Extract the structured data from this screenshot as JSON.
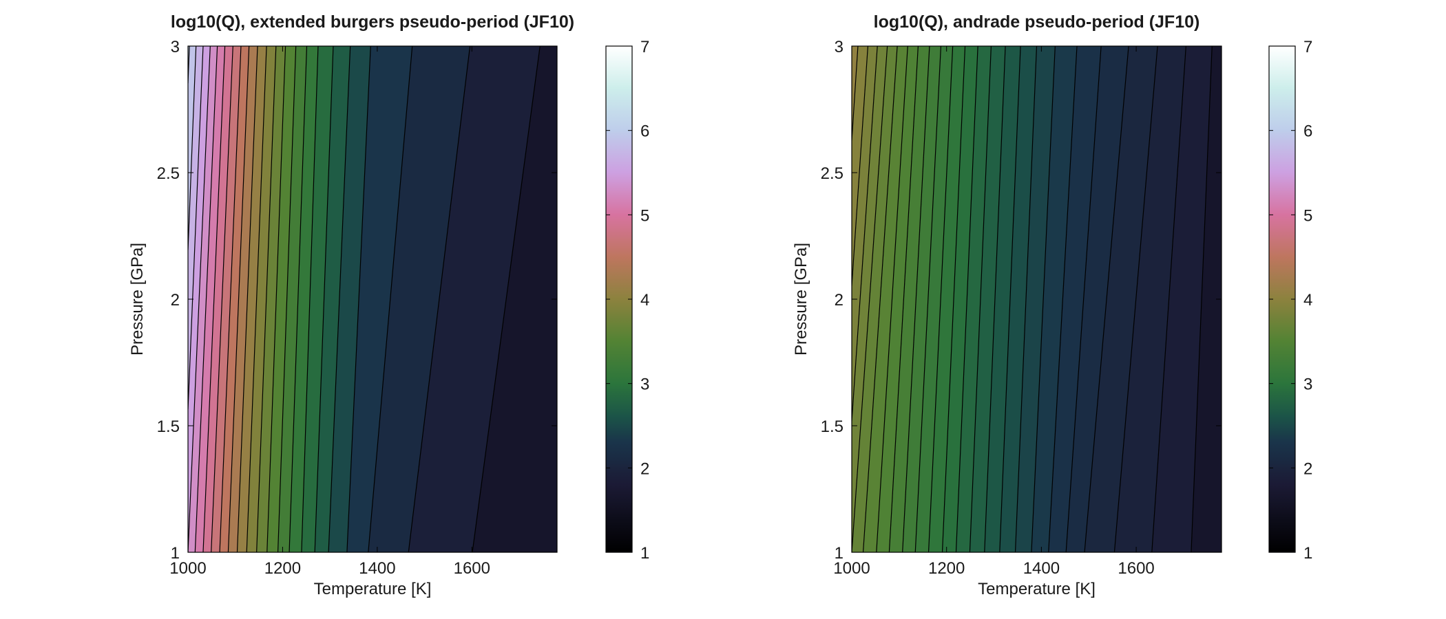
{
  "chart_data": [
    {
      "type": "contour",
      "title": "log10(Q), extended burgers pseudo-period (JF10)",
      "xlabel": "Temperature [K]",
      "ylabel": "Pressure [GPa]",
      "xlim": [
        1000,
        1780
      ],
      "ylim": [
        1,
        3
      ],
      "xticks": [
        "1000",
        "1200",
        "1400",
        "1600"
      ],
      "yticks": [
        "1",
        "1.5",
        "2",
        "2.5",
        "3"
      ],
      "colorbar": {
        "range": [
          1,
          7
        ],
        "ticks": [
          "1",
          "2",
          "3",
          "4",
          "5",
          "6",
          "7"
        ]
      },
      "contour_levels": [
        1.8,
        2.0,
        2.2,
        2.4,
        2.6,
        2.8,
        3.0,
        3.2,
        3.4,
        3.6,
        3.8,
        4.0,
        4.2,
        4.4,
        4.6,
        4.8,
        5.0,
        5.2,
        5.4,
        5.6,
        5.8,
        6.0,
        6.2,
        6.4,
        6.6,
        6.8
      ],
      "contour_lines_T": {
        "at_P_1": [
          1000,
          1015,
          1032,
          1049,
          1067,
          1085,
          1104,
          1124,
          1145,
          1167,
          1190,
          1214,
          1240,
          1268,
          1297,
          1336,
          1381,
          1466,
          1601
        ],
        "at_P_3": [
          1003,
          1017,
          1032,
          1047,
          1062,
          1078,
          1095,
          1112,
          1129,
          1147,
          1166,
          1186,
          1206,
          1228,
          1251,
          1275,
          1307,
          1343,
          1386,
          1474,
          1596,
          1744
        ]
      }
    },
    {
      "type": "contour",
      "title": "log10(Q), andrade pseudo-period (JF10)",
      "xlabel": "Temperature [K]",
      "ylabel": "Pressure [GPa]",
      "xlim": [
        1000,
        1780
      ],
      "ylim": [
        1,
        3
      ],
      "xticks": [
        "1000",
        "1200",
        "1400",
        "1600"
      ],
      "yticks": [
        "1",
        "1.5",
        "2",
        "2.5",
        "3"
      ],
      "colorbar": {
        "range": [
          1,
          7
        ],
        "ticks": [
          "1",
          "2",
          "3",
          "4",
          "5",
          "6",
          "7"
        ]
      },
      "contour_levels": [
        1.8,
        1.9,
        2.0,
        2.1,
        2.2,
        2.3,
        2.4,
        2.5,
        2.6,
        2.7,
        2.8,
        2.9,
        3.0,
        3.1,
        3.2,
        3.3,
        3.4,
        3.5,
        3.6,
        3.7,
        3.8,
        3.9,
        4.0,
        4.1,
        4.2
      ],
      "contour_lines_T": {
        "at_P_1": [
          1000,
          1024,
          1052,
          1079,
          1107,
          1134,
          1162,
          1191,
          1220,
          1249,
          1280,
          1312,
          1345,
          1379,
          1415,
          1452,
          1491,
          1554,
          1633,
          1716
        ],
        "at_P_3": [
          1013,
          1034,
          1054,
          1075,
          1096,
          1118,
          1140,
          1164,
          1188,
          1213,
          1239,
          1266,
          1294,
          1324,
          1356,
          1390,
          1429,
          1475,
          1526,
          1584,
          1645,
          1705,
          1760
        ]
      }
    }
  ]
}
